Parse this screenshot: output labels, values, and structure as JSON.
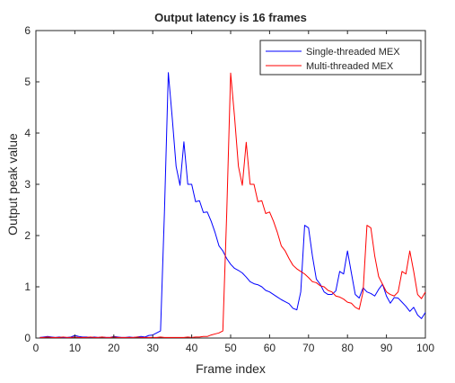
{
  "chart_data": {
    "type": "line",
    "title": "Output latency is 16 frames",
    "xlabel": "Frame index",
    "ylabel": "Output peak value",
    "xlim": [
      0,
      100
    ],
    "ylim": [
      0,
      6
    ],
    "xticks": [
      0,
      10,
      20,
      30,
      40,
      50,
      60,
      70,
      80,
      90,
      100
    ],
    "yticks": [
      0,
      1,
      2,
      3,
      4,
      5,
      6
    ],
    "grid": false,
    "legend_position": "top-right",
    "series": [
      {
        "name": "Single-threaded MEX",
        "color": "#0000ff",
        "x": [
          1,
          2,
          3,
          4,
          5,
          6,
          7,
          8,
          9,
          10,
          11,
          12,
          13,
          14,
          15,
          16,
          17,
          18,
          19,
          20,
          21,
          22,
          23,
          24,
          25,
          26,
          27,
          28,
          29,
          30,
          31,
          32,
          33,
          34,
          35,
          36,
          37,
          38,
          39,
          40,
          41,
          42,
          43,
          44,
          45,
          46,
          47,
          48,
          49,
          50,
          51,
          52,
          53,
          54,
          55,
          56,
          57,
          58,
          59,
          60,
          61,
          62,
          63,
          64,
          65,
          66,
          67,
          68,
          69,
          70,
          71,
          72,
          73,
          74,
          75,
          76,
          77,
          78,
          79,
          80,
          81,
          82,
          83,
          84,
          85,
          86,
          87,
          88,
          89,
          90,
          91,
          92,
          93,
          94,
          95,
          96,
          97,
          98,
          99,
          100
        ],
        "y": [
          0.01,
          0.02,
          0.03,
          0.02,
          0.01,
          0.02,
          0.01,
          0.01,
          0.02,
          0.05,
          0.03,
          0.02,
          0.02,
          0.01,
          0.02,
          0.01,
          0.02,
          0.01,
          0.01,
          0.03,
          0.02,
          0.01,
          0.01,
          0.02,
          0.01,
          0.02,
          0.03,
          0.02,
          0.05,
          0.06,
          0.1,
          0.14,
          2.45,
          5.18,
          4.3,
          3.35,
          2.98,
          3.83,
          3.0,
          3.0,
          2.66,
          2.68,
          2.45,
          2.46,
          2.28,
          2.06,
          1.8,
          1.7,
          1.55,
          1.44,
          1.36,
          1.32,
          1.27,
          1.19,
          1.1,
          1.06,
          1.04,
          1.0,
          0.93,
          0.9,
          0.85,
          0.8,
          0.75,
          0.71,
          0.67,
          0.58,
          0.55,
          0.9,
          2.2,
          2.15,
          1.6,
          1.15,
          1.05,
          0.9,
          0.85,
          0.85,
          0.92,
          1.3,
          1.25,
          1.7,
          1.27,
          0.85,
          0.78,
          0.98,
          0.9,
          0.87,
          0.82,
          0.95,
          1.05,
          0.82,
          0.68,
          0.79,
          0.78,
          0.7,
          0.62,
          0.52,
          0.6,
          0.45,
          0.38,
          0.5
        ]
      },
      {
        "name": "Multi-threaded MEX",
        "color": "#ff0000",
        "x": [
          1,
          2,
          3,
          4,
          5,
          6,
          7,
          8,
          9,
          10,
          11,
          12,
          13,
          14,
          15,
          16,
          17,
          18,
          19,
          20,
          21,
          22,
          23,
          24,
          25,
          26,
          27,
          28,
          29,
          30,
          31,
          32,
          33,
          34,
          35,
          36,
          37,
          38,
          39,
          40,
          41,
          42,
          43,
          44,
          45,
          46,
          47,
          48,
          49,
          50,
          51,
          52,
          53,
          54,
          55,
          56,
          57,
          58,
          59,
          60,
          61,
          62,
          63,
          64,
          65,
          66,
          67,
          68,
          69,
          70,
          71,
          72,
          73,
          74,
          75,
          76,
          77,
          78,
          79,
          80,
          81,
          82,
          83,
          84,
          85,
          86,
          87,
          88,
          89,
          90,
          91,
          92,
          93,
          94,
          95,
          96,
          97,
          98,
          99,
          100
        ],
        "y": [
          0.01,
          0.01,
          0.02,
          0.01,
          0.01,
          0.01,
          0.02,
          0.01,
          0.01,
          0.02,
          0.01,
          0.01,
          0.01,
          0.02,
          0.01,
          0.01,
          0.02,
          0.01,
          0.01,
          0.02,
          0.01,
          0.01,
          0.01,
          0.01,
          0.01,
          0.02,
          0.01,
          0.01,
          0.01,
          0.01,
          0.01,
          0.02,
          0.01,
          0.01,
          0.01,
          0.01,
          0.01,
          0.01,
          0.02,
          0.01,
          0.02,
          0.02,
          0.03,
          0.03,
          0.06,
          0.08,
          0.1,
          0.14,
          2.45,
          5.17,
          4.32,
          3.35,
          2.98,
          3.82,
          3.0,
          3.0,
          2.66,
          2.68,
          2.43,
          2.46,
          2.28,
          2.06,
          1.8,
          1.7,
          1.55,
          1.42,
          1.35,
          1.3,
          1.25,
          1.18,
          1.1,
          1.08,
          1.02,
          1.0,
          0.93,
          0.9,
          0.82,
          0.8,
          0.76,
          0.7,
          0.68,
          0.6,
          0.56,
          0.9,
          2.2,
          2.15,
          1.6,
          1.2,
          1.05,
          0.9,
          0.85,
          0.82,
          0.9,
          1.3,
          1.25,
          1.7,
          1.3,
          0.85,
          0.77,
          0.9
        ]
      }
    ]
  }
}
